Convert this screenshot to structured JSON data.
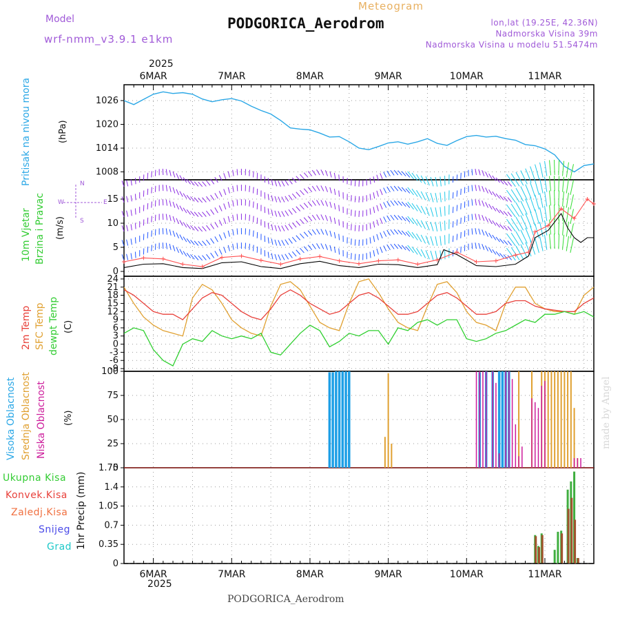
{
  "header": {
    "model_label": "Model",
    "model_name": "wrf-nmm_v3.9.1 e1km",
    "meteogram_label": "Meteogram",
    "station_title": "PODGORICA_Aerodrom",
    "coords": "lon,lat (19.25E, 42.36N)",
    "elevation": "Nadmorska Visina 39m",
    "model_elevation": "Nadmorska Visina u modelu 51.5474m",
    "footer_station": "PODGORICA_Aerodrom",
    "credit": "made by Angel"
  },
  "colors": {
    "pressure": "#2aa7e6",
    "temp2m": "#e8403a",
    "sfc": "#e0a030",
    "dew": "#2fcf2f",
    "wind_purple": "#8a2be2",
    "wind_blue": "#2255ff",
    "wind_cyan": "#1ec8e8",
    "wind_green": "#33dd33",
    "wind_yellow": "#d8d820",
    "gust_red": "#ff5050",
    "cloud_high": "#1e9fe6",
    "cloud_mid": "#e0a030",
    "cloud_low": "#cc1a9a",
    "precip_total": "#3fae3f",
    "precip_conv": "#a0522d"
  },
  "chart_data": [
    {
      "type": "line",
      "id": "pressure",
      "ylabel": "Pritisak na nivou mora",
      "unit": "(hPa)",
      "ylim": [
        1006,
        1030
      ],
      "yticks": [
        "1008",
        "1014",
        "1020",
        "1026"
      ],
      "xlim": [
        0,
        144
      ],
      "x_top_labels": [
        "6MAR",
        "7MAR",
        "8MAR",
        "9MAR",
        "10MAR",
        "11MAR"
      ],
      "x_top_year": "2025",
      "series": [
        {
          "x": [
            0,
            3,
            6,
            9,
            12,
            15,
            18,
            21,
            24,
            27,
            30,
            33,
            36,
            39,
            42,
            45,
            48,
            51,
            54,
            57,
            60,
            63,
            66,
            69,
            72,
            75,
            78,
            81,
            84,
            87,
            90,
            93,
            96,
            99,
            102,
            105,
            108,
            111,
            114,
            117,
            120,
            123,
            126,
            129,
            132,
            135,
            138,
            141,
            144
          ],
          "y": [
            1026,
            1025,
            1026.3,
            1027.6,
            1028.2,
            1027.8,
            1028,
            1027.6,
            1026.4,
            1025.7,
            1026.2,
            1026.5,
            1025.9,
            1024.6,
            1023.5,
            1022.6,
            1021,
            1019.1,
            1018.8,
            1018.6,
            1017.8,
            1016.8,
            1016.9,
            1015.6,
            1014,
            1013.6,
            1014.4,
            1015.3,
            1015.6,
            1015,
            1015.6,
            1016.4,
            1015.2,
            1014.7,
            1015.9,
            1016.9,
            1017.2,
            1016.8,
            1017,
            1016.4,
            1016,
            1014.9,
            1014.6,
            1013.8,
            1012.3,
            1009.4,
            1008,
            1009.6,
            1010
          ]
        }
      ]
    },
    {
      "type": "line",
      "id": "wind",
      "ylabel": "10m Vjetar",
      "ylabel2": "Brzina i Pravac",
      "unit": "(m/s)",
      "compass": {
        "n": "N",
        "w": "W",
        "e": "E",
        "s": "S"
      },
      "ylim": [
        -1,
        19
      ],
      "yticks": [
        "0",
        "5",
        "10",
        "15"
      ],
      "xlim": [
        0,
        144
      ],
      "series": [
        {
          "name": "",
          "x": [
            0,
            6,
            12,
            18,
            24,
            30,
            36,
            42,
            48,
            54,
            60,
            66,
            72,
            78,
            84,
            90,
            96,
            98,
            102,
            108,
            114,
            120,
            124,
            126,
            130,
            134,
            136,
            138,
            140,
            142,
            144
          ],
          "y": [
            0.8,
            1.5,
            1.6,
            0.8,
            0.6,
            1.8,
            2,
            1,
            0.6,
            1.6,
            2.1,
            1.2,
            0.8,
            1.5,
            1.4,
            0.8,
            1.4,
            4.5,
            3.5,
            1.2,
            1,
            1.5,
            3.2,
            7,
            8.5,
            12,
            9,
            7,
            6,
            7,
            7
          ]
        },
        {
          "name": "",
          "x": [
            0,
            6,
            12,
            18,
            24,
            30,
            36,
            42,
            48,
            54,
            60,
            66,
            72,
            78,
            84,
            90,
            96,
            102,
            108,
            114,
            120,
            124,
            126,
            130,
            134,
            138,
            142,
            144
          ],
          "y": [
            2,
            2.8,
            2.6,
            1.5,
            1,
            2.9,
            3.2,
            2.3,
            1.5,
            2.6,
            3.1,
            2.2,
            1.6,
            2.2,
            2.4,
            1.5,
            2.4,
            4,
            2,
            2.2,
            3.4,
            4,
            8.2,
            9.5,
            13,
            11,
            15,
            14
          ]
        }
      ]
    },
    {
      "type": "line",
      "id": "temperature",
      "ylabel": "2m Temp",
      "ylabel2": "SFC Temp",
      "ylabel3": "dewpt Temp",
      "unit": "(C)",
      "ylim": [
        -10,
        25
      ],
      "yticks": [
        "-9",
        "-6",
        "-3",
        "0",
        "3",
        "6",
        "9",
        "12",
        "15",
        "18",
        "21",
        "24"
      ],
      "xlim": [
        0,
        144
      ],
      "series": [
        {
          "name": "2m Temp",
          "x": [
            0,
            3,
            6,
            9,
            12,
            15,
            18,
            21,
            24,
            27,
            30,
            33,
            36,
            39,
            42,
            45,
            48,
            51,
            54,
            57,
            60,
            63,
            66,
            69,
            72,
            75,
            78,
            81,
            84,
            87,
            90,
            93,
            96,
            99,
            102,
            105,
            108,
            111,
            114,
            117,
            120,
            123,
            126,
            129,
            132,
            135,
            138,
            141,
            144
          ],
          "y": [
            20,
            18,
            15,
            12,
            11,
            11,
            9,
            13,
            17,
            19,
            18,
            15,
            12,
            10,
            9,
            13,
            18,
            20,
            18,
            15,
            13,
            11,
            12,
            15,
            18,
            19,
            17,
            14,
            11,
            11,
            12,
            15,
            18,
            19,
            17,
            14,
            11,
            11,
            12,
            15,
            16,
            16,
            14,
            13,
            12.5,
            12,
            12,
            15,
            17
          ]
        },
        {
          "name": "SFC Temp",
          "x": [
            0,
            3,
            6,
            9,
            12,
            15,
            18,
            21,
            24,
            27,
            30,
            33,
            36,
            39,
            42,
            45,
            48,
            51,
            54,
            57,
            60,
            63,
            66,
            69,
            72,
            75,
            78,
            81,
            84,
            87,
            90,
            93,
            96,
            99,
            102,
            105,
            108,
            111,
            114,
            117,
            120,
            123,
            126,
            129,
            132,
            135,
            138,
            141,
            144
          ],
          "y": [
            21,
            15,
            10,
            7,
            5,
            4,
            3,
            17,
            22,
            20,
            15,
            9,
            6,
            4,
            3,
            14,
            22,
            23,
            20,
            14,
            8,
            6,
            5,
            15,
            23,
            24,
            19,
            13,
            8,
            6,
            5,
            14,
            22,
            23,
            19,
            12,
            8,
            7,
            5,
            15,
            21,
            21,
            15,
            13,
            12,
            12,
            11,
            18,
            21
          ]
        },
        {
          "name": "dewpt Temp",
          "x": [
            0,
            3,
            6,
            9,
            12,
            15,
            18,
            21,
            24,
            27,
            30,
            33,
            36,
            39,
            42,
            45,
            48,
            51,
            54,
            57,
            60,
            63,
            66,
            69,
            72,
            75,
            78,
            81,
            84,
            87,
            90,
            93,
            96,
            99,
            102,
            105,
            108,
            111,
            114,
            117,
            120,
            123,
            126,
            129,
            132,
            135,
            138,
            141,
            144
          ],
          "y": [
            4,
            6,
            5,
            -2,
            -6,
            -8,
            0,
            2,
            1,
            5,
            3,
            2,
            3,
            2,
            4,
            -3,
            -4,
            0,
            4,
            7,
            5,
            -1,
            1,
            4,
            3,
            5,
            5,
            0,
            6,
            5,
            8,
            9,
            7,
            9,
            9,
            2,
            1,
            2,
            4,
            5,
            7,
            9,
            8,
            11,
            11,
            12,
            11,
            12,
            10
          ]
        }
      ]
    },
    {
      "type": "bar",
      "id": "clouds",
      "ylabel": "Visoka Oblacnost",
      "ylabel2": "Srednja Oblacnost",
      "ylabel3": "Niska Oblacnost",
      "unit": "(%)",
      "ylim": [
        0,
        100
      ],
      "yticks": [
        "0",
        "25",
        "50",
        "75",
        "100"
      ],
      "xlim": [
        0,
        144
      ],
      "series": [
        {
          "name": "Visoka Oblacnost",
          "x": [
            63,
            64,
            65,
            66,
            67,
            68,
            69,
            109,
            111,
            113,
            115,
            116,
            117,
            118
          ],
          "y": [
            99,
            99,
            100,
            100,
            100,
            100,
            100,
            99,
            100,
            100,
            100,
            100,
            100,
            100
          ]
        },
        {
          "name": "Srednja Oblacnost",
          "x": [
            80,
            81,
            82,
            121,
            125,
            128,
            129,
            130,
            131,
            132,
            133,
            134,
            135,
            136,
            137,
            138,
            139
          ],
          "y": [
            32,
            98,
            25,
            100,
            100,
            100,
            100,
            100,
            100,
            100,
            100,
            100,
            100,
            100,
            100,
            62,
            10
          ]
        },
        {
          "name": "Niska Oblacnost",
          "x": [
            108,
            109,
            110,
            111,
            113,
            114,
            115,
            117,
            118,
            119,
            120,
            121,
            122,
            125,
            126,
            127,
            128,
            129,
            138,
            139,
            140
          ],
          "y": [
            100,
            100,
            100,
            100,
            100,
            88,
            15,
            100,
            100,
            92,
            45,
            12,
            22,
            72,
            68,
            62,
            85,
            90,
            10,
            10,
            10
          ]
        }
      ]
    },
    {
      "type": "bar",
      "id": "precip",
      "ylabel": "1hr Precip (mm)",
      "legend": [
        "Ukupna Kisa",
        "Konvek.Kisa",
        "Zaledj.Kisa",
        "Snijeg",
        "Grad"
      ],
      "ylim": [
        0,
        1.75
      ],
      "yticks": [
        "0",
        "0.35",
        "0.7",
        "1.05",
        "1.4",
        "1.75"
      ],
      "xlim": [
        0,
        144
      ],
      "x_bottom_labels": [
        "6MAR",
        "7MAR",
        "8MAR",
        "9MAR",
        "10MAR",
        "11MAR"
      ],
      "x_bottom_year": "2025",
      "series": [
        {
          "name": "Ukupna Kisa",
          "x": [
            126,
            127,
            128,
            132,
            133,
            134,
            136,
            137,
            138,
            139
          ],
          "y": [
            0.52,
            0.32,
            0.55,
            0.25,
            0.58,
            0.6,
            1.35,
            1.5,
            1.68,
            0.1
          ]
        },
        {
          "name": "Konvek.Kisa",
          "x": [
            126,
            127,
            128,
            134,
            136,
            137,
            138,
            139
          ],
          "y": [
            0.5,
            0.3,
            0.52,
            0.55,
            1.0,
            1.2,
            0.8,
            0.1
          ]
        }
      ]
    }
  ]
}
